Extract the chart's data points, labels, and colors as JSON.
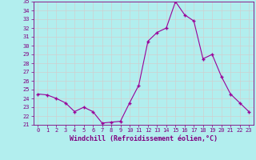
{
  "x": [
    0,
    1,
    2,
    3,
    4,
    5,
    6,
    7,
    8,
    9,
    10,
    11,
    12,
    13,
    14,
    15,
    16,
    17,
    18,
    19,
    20,
    21,
    22,
    23
  ],
  "y": [
    24.5,
    24.4,
    24.0,
    23.5,
    22.5,
    23.0,
    22.5,
    21.2,
    21.3,
    21.4,
    23.5,
    25.5,
    30.5,
    31.5,
    32.0,
    35.0,
    33.5,
    32.8,
    28.5,
    29.0,
    26.5,
    24.5,
    23.5,
    22.5
  ],
  "line_color": "#990099",
  "marker": "+",
  "marker_color": "#990099",
  "bg_color": "#b2eeee",
  "grid_color": "#d0d0d0",
  "xlabel": "Windchill (Refroidissement éolien,°C)",
  "xlabel_color": "#800080",
  "tick_color": "#800080",
  "spine_color": "#800080",
  "ylim": [
    21,
    35
  ],
  "xlim": [
    -0.5,
    23.5
  ],
  "yticks": [
    21,
    22,
    23,
    24,
    25,
    26,
    27,
    28,
    29,
    30,
    31,
    32,
    33,
    34,
    35
  ],
  "xticks": [
    0,
    1,
    2,
    3,
    4,
    5,
    6,
    7,
    8,
    9,
    10,
    11,
    12,
    13,
    14,
    15,
    16,
    17,
    18,
    19,
    20,
    21,
    22,
    23
  ],
  "title_fontsize": 5,
  "xlabel_fontsize": 6,
  "tick_fontsize": 5
}
